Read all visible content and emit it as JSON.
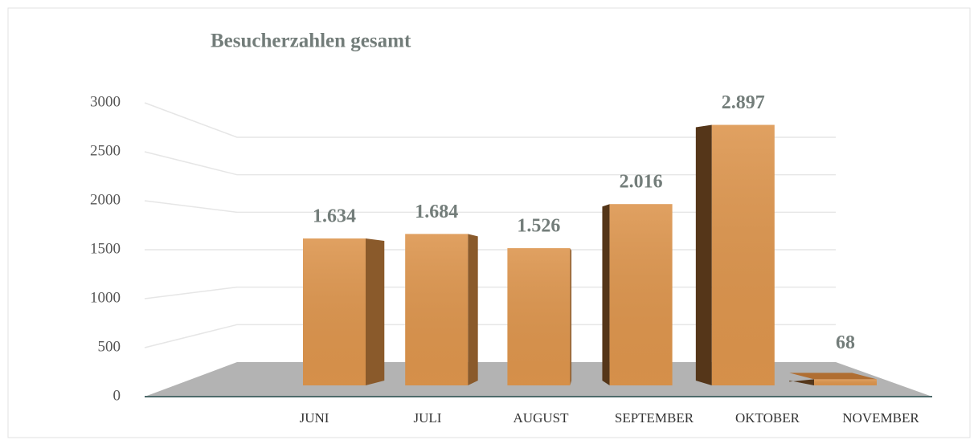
{
  "chart_data": {
    "type": "bar",
    "title": "Besucherzahlen gesamt",
    "categories": [
      "JUNI",
      "JULI",
      "AUGUST",
      "SEPTEMBER",
      "OKTOBER",
      "NOVEMBER"
    ],
    "values": [
      1634,
      1684,
      1526,
      2016,
      2897,
      68
    ],
    "value_labels": [
      "1.634",
      "1.684",
      "1.526",
      "2.016",
      "2.897",
      "68"
    ],
    "color": "#dc944c",
    "ylim": [
      0,
      3000
    ],
    "yticks": [
      0,
      500,
      1000,
      1500,
      2000,
      2500,
      3000
    ],
    "grid": true
  }
}
